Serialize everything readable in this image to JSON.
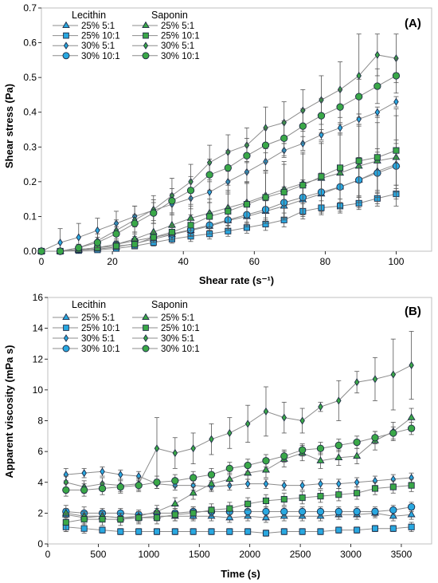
{
  "figure": {
    "colors": {
      "blue": "#29a8e0",
      "green": "#3aa848",
      "grey": "#8c8c8c",
      "edge": "#1f2a44"
    }
  },
  "chart_data": [
    {
      "type": "scatter",
      "panel_label": "(A)",
      "xlabel": "Shear rate (s⁻¹)",
      "ylabel": "Shear stress (Pa)",
      "xlim": [
        0,
        110
      ],
      "ylim": [
        0,
        0.7
      ],
      "xticks": [
        0,
        20,
        40,
        60,
        80,
        100
      ],
      "xtick_labels": [
        "0",
        "20",
        "40",
        "60",
        "80",
        "100"
      ],
      "yticks": [
        0,
        0.1,
        0.2,
        0.3,
        0.4,
        0.5,
        0.6,
        0.7
      ],
      "ytick_labels": [
        "0.0",
        "0.1",
        "0.2",
        "0.3",
        "0.4",
        "0.5",
        "0.6",
        "0.7"
      ],
      "legend_headers": [
        "Lecithin",
        "Saponin"
      ],
      "legend_labels": [
        "25% 5:1",
        "25% 10:1",
        "30% 5:1",
        "30% 10:1",
        "25% 5:1",
        "25% 10:1",
        "30% 5:1",
        "30% 10:1"
      ],
      "x": [
        0,
        5.3,
        10.5,
        15.8,
        21.1,
        26.3,
        31.6,
        36.8,
        42.1,
        47.4,
        52.6,
        57.9,
        63.2,
        68.4,
        73.7,
        78.9,
        84.2,
        89.5,
        94.7,
        100
      ],
      "series": [
        {
          "name": "Lecithin 25% 5:1",
          "marker": "triangle",
          "color": "blue",
          "values": [
            0,
            0,
            0.003,
            0.006,
            0.012,
            0.022,
            0.035,
            0.048,
            0.06,
            0.072,
            0.088,
            0.1,
            0.115,
            0.13,
            0.148,
            0.165,
            0.185,
            0.205,
            0.23,
            0.25
          ],
          "err": [
            0,
            0,
            0.004,
            0.006,
            0.008,
            0.01,
            0.012,
            0.015,
            0.018,
            0.02,
            0.025,
            0.028,
            0.03,
            0.035,
            0.038,
            0.04,
            0.045,
            0.05,
            0.055,
            0.06
          ]
        },
        {
          "name": "Lecithin 25% 10:1",
          "marker": "square",
          "color": "blue",
          "values": [
            0,
            0,
            0.002,
            0.004,
            0.008,
            0.015,
            0.025,
            0.035,
            0.043,
            0.05,
            0.058,
            0.068,
            0.078,
            0.09,
            0.115,
            0.125,
            0.13,
            0.138,
            0.152,
            0.165
          ],
          "err": [
            0,
            0,
            0.003,
            0.004,
            0.006,
            0.008,
            0.01,
            0.012,
            0.015,
            0.015,
            0.015,
            0.016,
            0.018,
            0.02,
            0.022,
            0.02,
            0.02,
            0.018,
            0.015,
            0.015
          ]
        },
        {
          "name": "Lecithin 30% 5:1",
          "marker": "diamond",
          "color": "blue",
          "values": [
            0,
            0.025,
            0.04,
            0.06,
            0.08,
            0.1,
            0.118,
            0.135,
            0.152,
            0.17,
            0.2,
            0.228,
            0.258,
            0.29,
            0.31,
            0.335,
            0.355,
            0.38,
            0.4,
            0.43
          ],
          "err": [
            0,
            0.04,
            0.04,
            0.035,
            0.035,
            0.03,
            0.03,
            0.03,
            0.03,
            0.03,
            0.03,
            0.03,
            0.025,
            0.02,
            0.02,
            0.015,
            0.015,
            0.015,
            0.015,
            0.015
          ]
        },
        {
          "name": "Lecithin 30% 10:1",
          "marker": "circle",
          "color": "blue",
          "values": [
            0,
            0,
            0.005,
            0.01,
            0.02,
            0.03,
            0.04,
            0.05,
            0.062,
            0.075,
            0.09,
            0.105,
            0.12,
            0.14,
            0.155,
            0.17,
            0.185,
            0.205,
            0.225,
            0.245
          ],
          "err": [
            0,
            0,
            0.005,
            0.008,
            0.01,
            0.012,
            0.015,
            0.018,
            0.02,
            0.025,
            0.03,
            0.035,
            0.04,
            0.045,
            0.05,
            0.055,
            0.06,
            0.065,
            0.07,
            0.075
          ]
        },
        {
          "name": "Saponin 25% 5:1",
          "marker": "triangle",
          "color": "green",
          "values": [
            0,
            0,
            0.005,
            0.01,
            0.02,
            0.035,
            0.055,
            0.075,
            0.095,
            0.11,
            0.125,
            0.14,
            0.16,
            0.178,
            0.195,
            0.21,
            0.225,
            0.245,
            0.26,
            0.27
          ],
          "err": [
            0,
            0,
            0.01,
            0.012,
            0.015,
            0.02,
            0.025,
            0.03,
            0.035,
            0.04,
            0.05,
            0.06,
            0.07,
            0.08,
            0.09,
            0.1,
            0.11,
            0.12,
            0.13,
            0.14
          ]
        },
        {
          "name": "Saponin 25% 10:1",
          "marker": "square",
          "color": "green",
          "values": [
            0,
            0,
            0.005,
            0.01,
            0.015,
            0.02,
            0.04,
            0.055,
            0.075,
            0.1,
            0.115,
            0.135,
            0.155,
            0.17,
            0.19,
            0.215,
            0.24,
            0.26,
            0.27,
            0.29
          ],
          "err": [
            0,
            0,
            0.005,
            0.008,
            0.01,
            0.012,
            0.015,
            0.02,
            0.03,
            0.04,
            0.05,
            0.06,
            0.07,
            0.08,
            0.09,
            0.1,
            0.1,
            0.1,
            0.1,
            0.1
          ]
        },
        {
          "name": "Saponin 30% 5:1",
          "marker": "diamond",
          "color": "green",
          "values": [
            0,
            0,
            0.01,
            0.03,
            0.06,
            0.09,
            0.12,
            0.16,
            0.2,
            0.255,
            0.285,
            0.305,
            0.355,
            0.37,
            0.405,
            0.435,
            0.465,
            0.505,
            0.565,
            0.555
          ],
          "err": [
            0,
            0,
            0.01,
            0.02,
            0.03,
            0.04,
            0.04,
            0.05,
            0.05,
            0.05,
            0.05,
            0.05,
            0.06,
            0.06,
            0.06,
            0.07,
            0.08,
            0.12,
            0.06,
            0.07
          ]
        },
        {
          "name": "Saponin 30% 10:1",
          "marker": "circle",
          "color": "green",
          "values": [
            0,
            0,
            0.01,
            0.025,
            0.05,
            0.08,
            0.11,
            0.145,
            0.175,
            0.22,
            0.24,
            0.275,
            0.305,
            0.325,
            0.36,
            0.39,
            0.415,
            0.445,
            0.475,
            0.505
          ],
          "err": [
            0,
            0,
            0.01,
            0.015,
            0.02,
            0.025,
            0.03,
            0.035,
            0.04,
            0.045,
            0.05,
            0.05,
            0.05,
            0.05,
            0.05,
            0.05,
            0.05,
            0.05,
            0.05,
            0.05
          ]
        }
      ]
    },
    {
      "type": "scatter",
      "panel_label": "(B)",
      "xlabel": "Time (s)",
      "ylabel": "Apparent viscosity  (mPa s)",
      "xlim": [
        0,
        3800
      ],
      "ylim": [
        0,
        16
      ],
      "xticks": [
        0,
        500,
        1000,
        1500,
        2000,
        2500,
        3000,
        3500
      ],
      "xtick_labels": [
        "0",
        "500",
        "1000",
        "1500",
        "2000",
        "2500",
        "3000",
        "3500"
      ],
      "yticks": [
        0,
        2,
        4,
        6,
        8,
        10,
        12,
        14,
        16
      ],
      "ytick_labels": [
        "0",
        "2",
        "4",
        "6",
        "8",
        "10",
        "12",
        "14",
        "16"
      ],
      "legend_headers": [
        "Lecithin",
        "Saponin"
      ],
      "legend_labels": [
        "25% 5:1",
        "25% 10:1",
        "30% 5:1",
        "30% 10:1",
        "25% 5:1",
        "25% 10:1",
        "30% 5:1",
        "30% 10:1"
      ],
      "x": [
        180,
        360,
        540,
        720,
        900,
        1080,
        1260,
        1440,
        1620,
        1800,
        1980,
        2160,
        2340,
        2520,
        2700,
        2880,
        3060,
        3240,
        3420,
        3600
      ],
      "series": [
        {
          "name": "Lecithin 25% 5:1",
          "marker": "triangle",
          "color": "blue",
          "values": [
            1.9,
            1.7,
            1.8,
            1.7,
            1.7,
            1.8,
            1.8,
            1.8,
            1.8,
            1.7,
            1.8,
            1.7,
            1.8,
            1.8,
            1.8,
            1.9,
            1.9,
            2.0,
            1.8,
            1.9
          ],
          "err": [
            0.3,
            0.4,
            0.3,
            0.3,
            0.3,
            0.3,
            0.3,
            0.3,
            0.3,
            0.3,
            0.3,
            0.3,
            0.3,
            0.3,
            0.3,
            0.3,
            0.3,
            0.3,
            0.3,
            0.3
          ]
        },
        {
          "name": "Lecithin 25% 10:1",
          "marker": "square",
          "color": "blue",
          "values": [
            1.1,
            1.0,
            0.9,
            0.8,
            0.8,
            0.8,
            0.8,
            0.8,
            0.8,
            0.8,
            0.8,
            0.7,
            0.8,
            0.8,
            0.8,
            0.9,
            0.9,
            1.0,
            1.0,
            1.1
          ],
          "err": [
            0.3,
            0.3,
            0.2,
            0.2,
            0.2,
            0.2,
            0.2,
            0.2,
            0.2,
            0.2,
            0.2,
            0.2,
            0.2,
            0.2,
            0.2,
            0.2,
            0.2,
            0.2,
            0.2,
            0.3
          ]
        },
        {
          "name": "Lecithin 30% 5:1",
          "marker": "diamond",
          "color": "blue",
          "values": [
            4.5,
            4.6,
            4.7,
            4.5,
            4.4,
            3.9,
            3.8,
            3.8,
            3.7,
            3.8,
            3.9,
            3.9,
            3.8,
            3.8,
            3.9,
            3.9,
            4.0,
            4.1,
            4.2,
            4.3
          ],
          "err": [
            0.4,
            0.3,
            0.3,
            0.3,
            0.3,
            0.3,
            0.3,
            0.3,
            0.3,
            0.3,
            0.3,
            0.3,
            0.3,
            0.3,
            0.3,
            0.3,
            0.3,
            0.3,
            0.3,
            0.3
          ]
        },
        {
          "name": "Lecithin 30% 10:1",
          "marker": "circle",
          "color": "blue",
          "values": [
            2.1,
            2.0,
            2.0,
            2.0,
            1.9,
            2.0,
            2.0,
            2.1,
            2.1,
            2.1,
            2.1,
            2.1,
            2.1,
            2.1,
            2.1,
            2.1,
            2.1,
            2.1,
            2.2,
            2.4
          ],
          "err": [
            0.4,
            0.4,
            0.3,
            0.3,
            0.3,
            0.3,
            0.3,
            0.3,
            0.3,
            0.3,
            0.3,
            0.3,
            0.3,
            0.3,
            0.3,
            0.3,
            0.3,
            0.3,
            0.3,
            0.3
          ]
        },
        {
          "name": "Saponin 25% 5:1",
          "marker": "triangle",
          "color": "green",
          "values": [
            2.0,
            1.8,
            1.8,
            1.7,
            1.8,
            2.1,
            2.6,
            3.3,
            3.9,
            4.2,
            4.6,
            4.8,
            5.5,
            5.9,
            5.4,
            5.6,
            5.7,
            6.7,
            7.3,
            8.2
          ],
          "err": [
            0.3,
            0.3,
            0.3,
            0.3,
            0.3,
            0.4,
            0.4,
            0.4,
            0.4,
            0.4,
            0.4,
            0.5,
            0.5,
            0.5,
            0.5,
            0.5,
            0.5,
            0.6,
            0.6,
            0.6
          ]
        },
        {
          "name": "Saponin 25% 10:1",
          "marker": "square",
          "color": "green",
          "values": [
            1.4,
            1.6,
            1.6,
            1.6,
            1.7,
            1.7,
            1.9,
            2.0,
            2.2,
            2.3,
            2.6,
            2.8,
            2.9,
            3.0,
            3.1,
            3.2,
            3.3,
            3.6,
            3.7,
            3.8
          ],
          "err": [
            0.6,
            0.4,
            0.4,
            0.4,
            0.4,
            0.4,
            0.4,
            0.4,
            0.4,
            0.4,
            0.4,
            0.4,
            0.4,
            0.4,
            0.4,
            0.4,
            0.4,
            0.4,
            0.4,
            0.4
          ]
        },
        {
          "name": "Saponin 30% 5:1",
          "marker": "diamond",
          "color": "green",
          "values": [
            4.0,
            3.7,
            3.9,
            3.8,
            3.9,
            6.2,
            5.9,
            6.2,
            6.8,
            7.2,
            7.8,
            8.6,
            8.2,
            8.0,
            8.9,
            9.3,
            10.5,
            10.7,
            11.0,
            11.6
          ],
          "err": [
            0.4,
            0.4,
            0.4,
            0.4,
            0.4,
            2.0,
            1.0,
            1.0,
            1.0,
            1.0,
            1.2,
            1.6,
            1.0,
            0.8,
            0.3,
            1.3,
            0.7,
            1.4,
            2.3,
            2.2
          ]
        },
        {
          "name": "Saponin 30% 10:1",
          "marker": "circle",
          "color": "green",
          "values": [
            3.5,
            3.5,
            3.6,
            3.7,
            3.8,
            4.0,
            4.1,
            4.3,
            4.5,
            4.9,
            5.1,
            5.4,
            5.7,
            6.1,
            6.2,
            6.4,
            6.6,
            6.9,
            7.2,
            7.5
          ],
          "err": [
            0.4,
            0.4,
            0.4,
            0.4,
            0.4,
            0.4,
            0.4,
            0.4,
            0.4,
            0.4,
            0.4,
            0.4,
            0.4,
            0.4,
            0.4,
            0.4,
            0.4,
            0.4,
            0.4,
            0.4
          ]
        }
      ]
    }
  ]
}
